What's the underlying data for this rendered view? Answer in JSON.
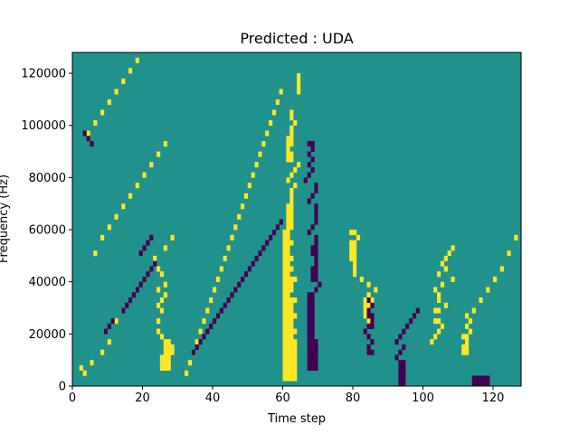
{
  "chart_data": {
    "type": "heatmap",
    "title": "Predicted : UDA",
    "xlabel": "Time step",
    "ylabel": "Frequency (Hz)",
    "xlim": [
      0,
      128
    ],
    "ylim": [
      0,
      128000
    ],
    "x_ticks": [
      0,
      20,
      40,
      60,
      80,
      100,
      120
    ],
    "x_tick_labels": [
      "0",
      "20",
      "40",
      "60",
      "80",
      "100",
      "120"
    ],
    "y_ticks": [
      0,
      20000,
      40000,
      60000,
      80000,
      100000,
      120000
    ],
    "y_tick_labels": [
      "0",
      "20000",
      "40000",
      "60000",
      "80000",
      "100000",
      "120000"
    ],
    "grid": false,
    "legend": "none",
    "n_time_steps": 128,
    "n_frequency_bins": 64,
    "classes": {
      "background": {
        "value": 0,
        "color": "#21918c"
      },
      "low": {
        "value": -1,
        "color": "#440154"
      },
      "high": {
        "value": 1,
        "color": "#fde725"
      }
    },
    "cell_color": "#21918c",
    "low_color": "#440154",
    "high_color": "#fde725",
    "high_cells": [
      [
        60,
        1
      ],
      [
        61,
        1
      ],
      [
        62,
        1
      ],
      [
        63,
        1
      ],
      [
        60,
        2
      ],
      [
        61,
        2
      ],
      [
        62,
        2
      ],
      [
        63,
        2
      ],
      [
        60,
        3
      ],
      [
        61,
        3
      ],
      [
        62,
        3
      ],
      [
        63,
        3
      ],
      [
        60,
        4
      ],
      [
        61,
        4
      ],
      [
        62,
        4
      ],
      [
        63,
        4
      ],
      [
        60,
        5
      ],
      [
        61,
        5
      ],
      [
        62,
        5
      ],
      [
        63,
        5
      ],
      [
        60,
        6
      ],
      [
        61,
        6
      ],
      [
        62,
        6
      ],
      [
        63,
        6
      ],
      [
        60,
        7
      ],
      [
        61,
        7
      ],
      [
        62,
        7
      ],
      [
        63,
        7
      ],
      [
        60,
        8
      ],
      [
        61,
        8
      ],
      [
        62,
        8
      ],
      [
        63,
        8
      ],
      [
        60,
        9
      ],
      [
        61,
        9
      ],
      [
        62,
        9
      ],
      [
        60,
        10
      ],
      [
        61,
        10
      ],
      [
        62,
        10
      ],
      [
        63,
        10
      ],
      [
        60,
        11
      ],
      [
        61,
        11
      ],
      [
        62,
        11
      ],
      [
        60,
        12
      ],
      [
        61,
        12
      ],
      [
        62,
        12
      ],
      [
        60,
        13
      ],
      [
        61,
        13
      ],
      [
        62,
        13
      ],
      [
        63,
        13
      ],
      [
        60,
        14
      ],
      [
        61,
        14
      ],
      [
        62,
        14
      ],
      [
        60,
        15
      ],
      [
        61,
        15
      ],
      [
        62,
        15
      ],
      [
        60,
        16
      ],
      [
        61,
        16
      ],
      [
        62,
        16
      ],
      [
        63,
        16
      ],
      [
        60,
        17
      ],
      [
        61,
        17
      ],
      [
        60,
        18
      ],
      [
        61,
        18
      ],
      [
        62,
        18
      ],
      [
        60,
        19
      ],
      [
        61,
        19
      ],
      [
        62,
        19
      ],
      [
        60,
        20
      ],
      [
        61,
        20
      ],
      [
        62,
        20
      ],
      [
        63,
        20
      ],
      [
        60,
        21
      ],
      [
        61,
        21
      ],
      [
        60,
        22
      ],
      [
        61,
        22
      ],
      [
        62,
        22
      ],
      [
        60,
        23
      ],
      [
        61,
        23
      ],
      [
        60,
        24
      ],
      [
        61,
        24
      ],
      [
        62,
        24
      ],
      [
        60,
        25
      ],
      [
        61,
        25
      ],
      [
        60,
        26
      ],
      [
        61,
        26
      ],
      [
        60,
        27
      ],
      [
        61,
        27
      ],
      [
        62,
        27
      ],
      [
        60,
        28
      ],
      [
        61,
        28
      ],
      [
        60,
        29
      ],
      [
        61,
        29
      ],
      [
        61,
        30
      ],
      [
        62,
        30
      ],
      [
        61,
        31
      ],
      [
        62,
        31
      ],
      [
        61,
        32
      ],
      [
        62,
        32
      ],
      [
        61,
        33
      ],
      [
        62,
        33
      ],
      [
        61,
        34
      ],
      [
        62,
        34
      ],
      [
        62,
        35
      ],
      [
        62,
        36
      ],
      [
        62,
        37
      ],
      [
        63,
        38
      ],
      [
        61,
        39
      ],
      [
        62,
        40
      ],
      [
        63,
        41
      ],
      [
        64,
        42
      ],
      [
        61,
        43
      ],
      [
        62,
        43
      ],
      [
        61,
        44
      ],
      [
        62,
        44
      ],
      [
        61,
        45
      ],
      [
        61,
        46
      ],
      [
        62,
        46
      ],
      [
        61,
        47
      ],
      [
        62,
        47
      ],
      [
        62,
        48
      ],
      [
        62,
        49
      ],
      [
        63,
        50
      ],
      [
        62,
        51
      ],
      [
        62,
        52
      ],
      [
        64,
        56
      ],
      [
        64,
        57
      ],
      [
        64,
        58
      ],
      [
        64,
        59
      ],
      [
        25,
        3
      ],
      [
        26,
        3
      ],
      [
        27,
        3
      ],
      [
        25,
        4
      ],
      [
        26,
        4
      ],
      [
        27,
        4
      ],
      [
        25,
        5
      ],
      [
        26,
        5
      ],
      [
        27,
        5
      ],
      [
        26,
        6
      ],
      [
        27,
        6
      ],
      [
        28,
        6
      ],
      [
        26,
        7
      ],
      [
        27,
        7
      ],
      [
        28,
        7
      ],
      [
        26,
        8
      ],
      [
        27,
        8
      ],
      [
        25,
        9
      ],
      [
        24,
        10
      ],
      [
        24,
        12
      ],
      [
        25,
        14
      ],
      [
        24,
        15
      ],
      [
        25,
        16
      ],
      [
        26,
        17
      ],
      [
        24,
        18
      ],
      [
        26,
        19
      ],
      [
        25,
        21
      ],
      [
        24,
        22
      ],
      [
        23,
        24
      ],
      [
        26,
        26
      ],
      [
        28,
        28
      ],
      [
        84,
        12
      ],
      [
        85,
        12
      ],
      [
        83,
        13
      ],
      [
        84,
        13
      ],
      [
        83,
        14
      ],
      [
        84,
        14
      ],
      [
        83,
        15
      ],
      [
        84,
        15
      ],
      [
        83,
        16
      ],
      [
        85,
        16
      ],
      [
        84,
        17
      ],
      [
        86,
        18
      ],
      [
        84,
        19
      ],
      [
        82,
        20
      ],
      [
        80,
        21
      ],
      [
        80,
        22
      ],
      [
        80,
        23
      ],
      [
        79,
        24
      ],
      [
        80,
        24
      ],
      [
        79,
        25
      ],
      [
        80,
        25
      ],
      [
        79,
        26
      ],
      [
        80,
        26
      ],
      [
        79,
        27
      ],
      [
        80,
        27
      ],
      [
        81,
        28
      ],
      [
        79,
        29
      ],
      [
        80,
        29
      ],
      [
        102,
        8
      ],
      [
        103,
        9
      ],
      [
        104,
        10
      ],
      [
        105,
        11
      ],
      [
        103,
        12
      ],
      [
        104,
        12
      ],
      [
        103,
        14
      ],
      [
        104,
        14
      ],
      [
        106,
        15
      ],
      [
        104,
        16
      ],
      [
        104,
        17
      ],
      [
        103,
        18
      ],
      [
        105,
        19
      ],
      [
        108,
        20
      ],
      [
        104,
        21
      ],
      [
        106,
        22
      ],
      [
        105,
        23
      ],
      [
        106,
        24
      ],
      [
        107,
        25
      ],
      [
        108,
        26
      ],
      [
        111,
        6
      ],
      [
        112,
        6
      ],
      [
        111,
        7
      ],
      [
        112,
        7
      ],
      [
        112,
        8
      ],
      [
        111,
        9
      ],
      [
        112,
        9
      ],
      [
        113,
        10
      ],
      [
        112,
        11
      ],
      [
        113,
        12
      ],
      [
        112,
        13
      ],
      [
        114,
        14
      ],
      [
        116,
        16
      ],
      [
        118,
        18
      ],
      [
        120,
        20
      ],
      [
        122,
        22
      ],
      [
        124,
        25
      ],
      [
        126,
        28
      ],
      [
        2,
        3
      ],
      [
        3,
        2
      ],
      [
        5,
        4
      ],
      [
        8,
        6
      ],
      [
        10,
        8
      ],
      [
        12,
        12
      ],
      [
        14,
        14
      ],
      [
        16,
        16
      ],
      [
        18,
        18
      ],
      [
        20,
        20
      ],
      [
        22,
        22
      ],
      [
        6,
        25
      ],
      [
        8,
        28
      ],
      [
        10,
        30
      ],
      [
        12,
        32
      ],
      [
        14,
        34
      ],
      [
        16,
        36
      ],
      [
        18,
        38
      ],
      [
        20,
        40
      ],
      [
        22,
        42
      ],
      [
        24,
        44
      ],
      [
        26,
        46
      ],
      [
        4,
        48
      ],
      [
        6,
        50
      ],
      [
        8,
        52
      ],
      [
        10,
        54
      ],
      [
        12,
        56
      ],
      [
        14,
        58
      ],
      [
        16,
        60
      ],
      [
        18,
        62
      ],
      [
        32,
        2
      ],
      [
        33,
        4
      ],
      [
        34,
        6
      ],
      [
        35,
        8
      ],
      [
        36,
        10
      ],
      [
        37,
        12
      ],
      [
        38,
        14
      ],
      [
        39,
        16
      ],
      [
        40,
        18
      ],
      [
        41,
        20
      ],
      [
        42,
        22
      ],
      [
        43,
        24
      ],
      [
        44,
        26
      ],
      [
        45,
        28
      ],
      [
        46,
        30
      ],
      [
        47,
        32
      ],
      [
        48,
        34
      ],
      [
        49,
        36
      ],
      [
        50,
        38
      ],
      [
        51,
        40
      ],
      [
        52,
        42
      ],
      [
        53,
        44
      ],
      [
        54,
        46
      ],
      [
        55,
        48
      ],
      [
        56,
        50
      ],
      [
        57,
        52
      ],
      [
        58,
        54
      ],
      [
        59,
        56
      ]
    ],
    "low_cells": [
      [
        67,
        3
      ],
      [
        68,
        3
      ],
      [
        69,
        3
      ],
      [
        67,
        4
      ],
      [
        68,
        4
      ],
      [
        69,
        4
      ],
      [
        67,
        5
      ],
      [
        68,
        5
      ],
      [
        69,
        5
      ],
      [
        67,
        6
      ],
      [
        68,
        6
      ],
      [
        69,
        6
      ],
      [
        67,
        7
      ],
      [
        68,
        7
      ],
      [
        69,
        7
      ],
      [
        67,
        8
      ],
      [
        68,
        8
      ],
      [
        69,
        8
      ],
      [
        67,
        9
      ],
      [
        68,
        9
      ],
      [
        67,
        10
      ],
      [
        68,
        10
      ],
      [
        67,
        11
      ],
      [
        68,
        11
      ],
      [
        67,
        12
      ],
      [
        68,
        12
      ],
      [
        67,
        13
      ],
      [
        68,
        13
      ],
      [
        67,
        14
      ],
      [
        68,
        14
      ],
      [
        67,
        15
      ],
      [
        68,
        15
      ],
      [
        67,
        16
      ],
      [
        68,
        16
      ],
      [
        67,
        17
      ],
      [
        68,
        17
      ],
      [
        69,
        18
      ],
      [
        70,
        19
      ],
      [
        68,
        20
      ],
      [
        69,
        20
      ],
      [
        68,
        21
      ],
      [
        69,
        21
      ],
      [
        68,
        22
      ],
      [
        69,
        22
      ],
      [
        69,
        23
      ],
      [
        69,
        24
      ],
      [
        68,
        25
      ],
      [
        69,
        25
      ],
      [
        68,
        26
      ],
      [
        69,
        26
      ],
      [
        69,
        27
      ],
      [
        69,
        28
      ],
      [
        67,
        29
      ],
      [
        68,
        30
      ],
      [
        69,
        31
      ],
      [
        69,
        32
      ],
      [
        69,
        33
      ],
      [
        69,
        34
      ],
      [
        67,
        35
      ],
      [
        68,
        36
      ],
      [
        69,
        37
      ],
      [
        69,
        38
      ],
      [
        66,
        39
      ],
      [
        67,
        40
      ],
      [
        68,
        41
      ],
      [
        67,
        42
      ],
      [
        68,
        43
      ],
      [
        67,
        44
      ],
      [
        68,
        45
      ],
      [
        67,
        46
      ],
      [
        68,
        46
      ],
      [
        114,
        0
      ],
      [
        115,
        0
      ],
      [
        116,
        0
      ],
      [
        117,
        0
      ],
      [
        118,
        0
      ],
      [
        114,
        1
      ],
      [
        115,
        1
      ],
      [
        116,
        1
      ],
      [
        117,
        1
      ],
      [
        118,
        1
      ],
      [
        93,
        0
      ],
      [
        94,
        0
      ],
      [
        93,
        1
      ],
      [
        94,
        1
      ],
      [
        93,
        2
      ],
      [
        94,
        2
      ],
      [
        93,
        3
      ],
      [
        94,
        3
      ],
      [
        93,
        4
      ],
      [
        94,
        4
      ],
      [
        92,
        5
      ],
      [
        93,
        6
      ],
      [
        94,
        7
      ],
      [
        92,
        8
      ],
      [
        93,
        9
      ],
      [
        94,
        10
      ],
      [
        95,
        11
      ],
      [
        96,
        12
      ],
      [
        97,
        13
      ],
      [
        98,
        14
      ],
      [
        84,
        6
      ],
      [
        85,
        6
      ],
      [
        84,
        7
      ],
      [
        85,
        8
      ],
      [
        84,
        9
      ],
      [
        83,
        10
      ],
      [
        84,
        11
      ],
      [
        85,
        11
      ],
      [
        85,
        12
      ],
      [
        84,
        13
      ],
      [
        85,
        13
      ],
      [
        84,
        14
      ],
      [
        85,
        15
      ],
      [
        84,
        16
      ],
      [
        3,
        48
      ],
      [
        4,
        47
      ],
      [
        5,
        46
      ],
      [
        9,
        10
      ],
      [
        10,
        11
      ],
      [
        11,
        12
      ],
      [
        14,
        14
      ],
      [
        15,
        15
      ],
      [
        16,
        16
      ],
      [
        17,
        17
      ],
      [
        18,
        18
      ],
      [
        19,
        19
      ],
      [
        20,
        20
      ],
      [
        21,
        21
      ],
      [
        22,
        22
      ],
      [
        23,
        23
      ],
      [
        19,
        25
      ],
      [
        20,
        26
      ],
      [
        21,
        27
      ],
      [
        22,
        28
      ],
      [
        34,
        6
      ],
      [
        35,
        7
      ],
      [
        36,
        8
      ],
      [
        37,
        9
      ],
      [
        38,
        10
      ],
      [
        39,
        11
      ],
      [
        40,
        12
      ],
      [
        41,
        13
      ],
      [
        42,
        14
      ],
      [
        43,
        15
      ],
      [
        44,
        16
      ],
      [
        45,
        17
      ],
      [
        46,
        18
      ],
      [
        47,
        19
      ],
      [
        48,
        20
      ],
      [
        49,
        21
      ],
      [
        50,
        22
      ],
      [
        51,
        23
      ],
      [
        52,
        24
      ],
      [
        53,
        25
      ],
      [
        54,
        26
      ],
      [
        55,
        27
      ],
      [
        56,
        28
      ],
      [
        57,
        29
      ],
      [
        58,
        30
      ],
      [
        59,
        31
      ]
    ]
  }
}
